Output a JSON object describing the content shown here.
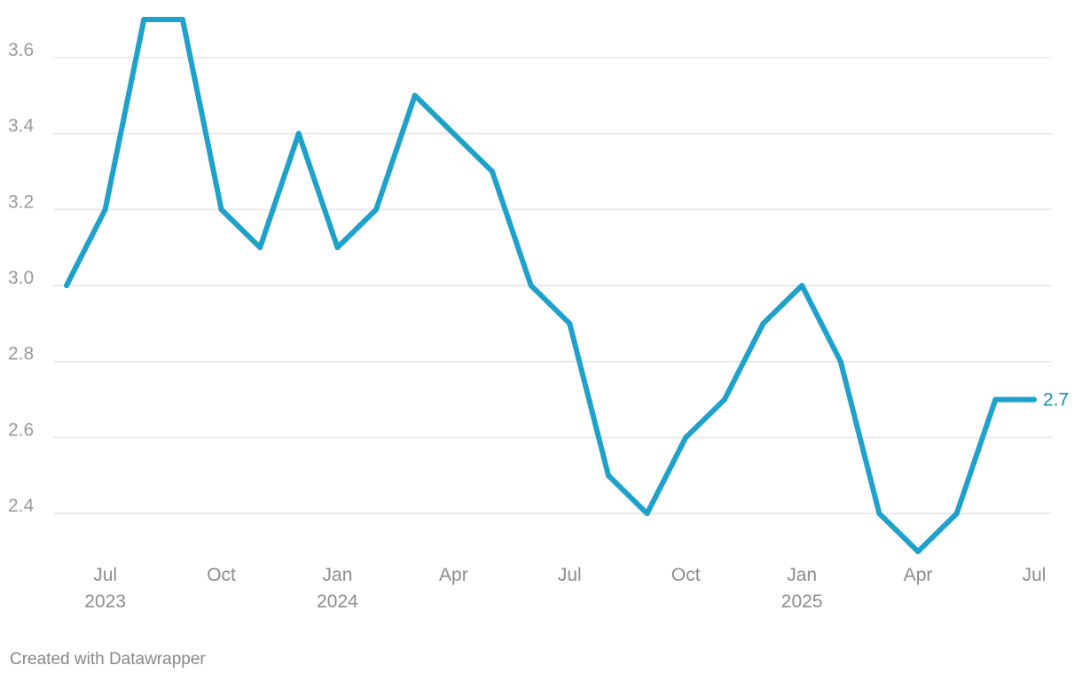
{
  "chart_data": {
    "type": "line",
    "title": "",
    "xlabel": "",
    "ylabel": "",
    "ylim": [
      2.3,
      3.7
    ],
    "y_ticks": [
      "2.4",
      "2.6",
      "2.8",
      "3.0",
      "3.2",
      "3.4",
      "3.6"
    ],
    "grid": true,
    "x": [
      "2023-06",
      "2023-07",
      "2023-08",
      "2023-09",
      "2023-10",
      "2023-11",
      "2023-12",
      "2024-01",
      "2024-02",
      "2024-03",
      "2024-04",
      "2024-05",
      "2024-06",
      "2024-07",
      "2024-08",
      "2024-09",
      "2024-10",
      "2024-11",
      "2024-12",
      "2025-01",
      "2025-02",
      "2025-03",
      "2025-04",
      "2025-05",
      "2025-06",
      "2025-07"
    ],
    "series": [
      {
        "values": [
          3.0,
          3.2,
          3.7,
          3.7,
          3.2,
          3.1,
          3.4,
          3.1,
          3.2,
          3.5,
          3.4,
          3.3,
          3.0,
          2.9,
          2.5,
          2.4,
          2.6,
          2.7,
          2.9,
          3.0,
          2.8,
          2.4,
          2.3,
          2.4,
          2.7,
          2.7
        ]
      }
    ],
    "x_ticks": [
      {
        "x": "2023-07",
        "month": "Jul",
        "year": "2023"
      },
      {
        "x": "2023-10",
        "month": "Oct",
        "year": ""
      },
      {
        "x": "2024-01",
        "month": "Jan",
        "year": "2024"
      },
      {
        "x": "2024-04",
        "month": "Apr",
        "year": ""
      },
      {
        "x": "2024-07",
        "month": "Jul",
        "year": ""
      },
      {
        "x": "2024-10",
        "month": "Oct",
        "year": ""
      },
      {
        "x": "2025-01",
        "month": "Jan",
        "year": "2025"
      },
      {
        "x": "2025-04",
        "month": "Apr",
        "year": ""
      },
      {
        "x": "2025-07",
        "month": "Jul",
        "year": ""
      }
    ],
    "end_label": "2.7",
    "colors": {
      "line": "#1ea2cc",
      "end_label": "#1a8fb3"
    }
  },
  "footer": {
    "credit": "Created with Datawrapper"
  }
}
